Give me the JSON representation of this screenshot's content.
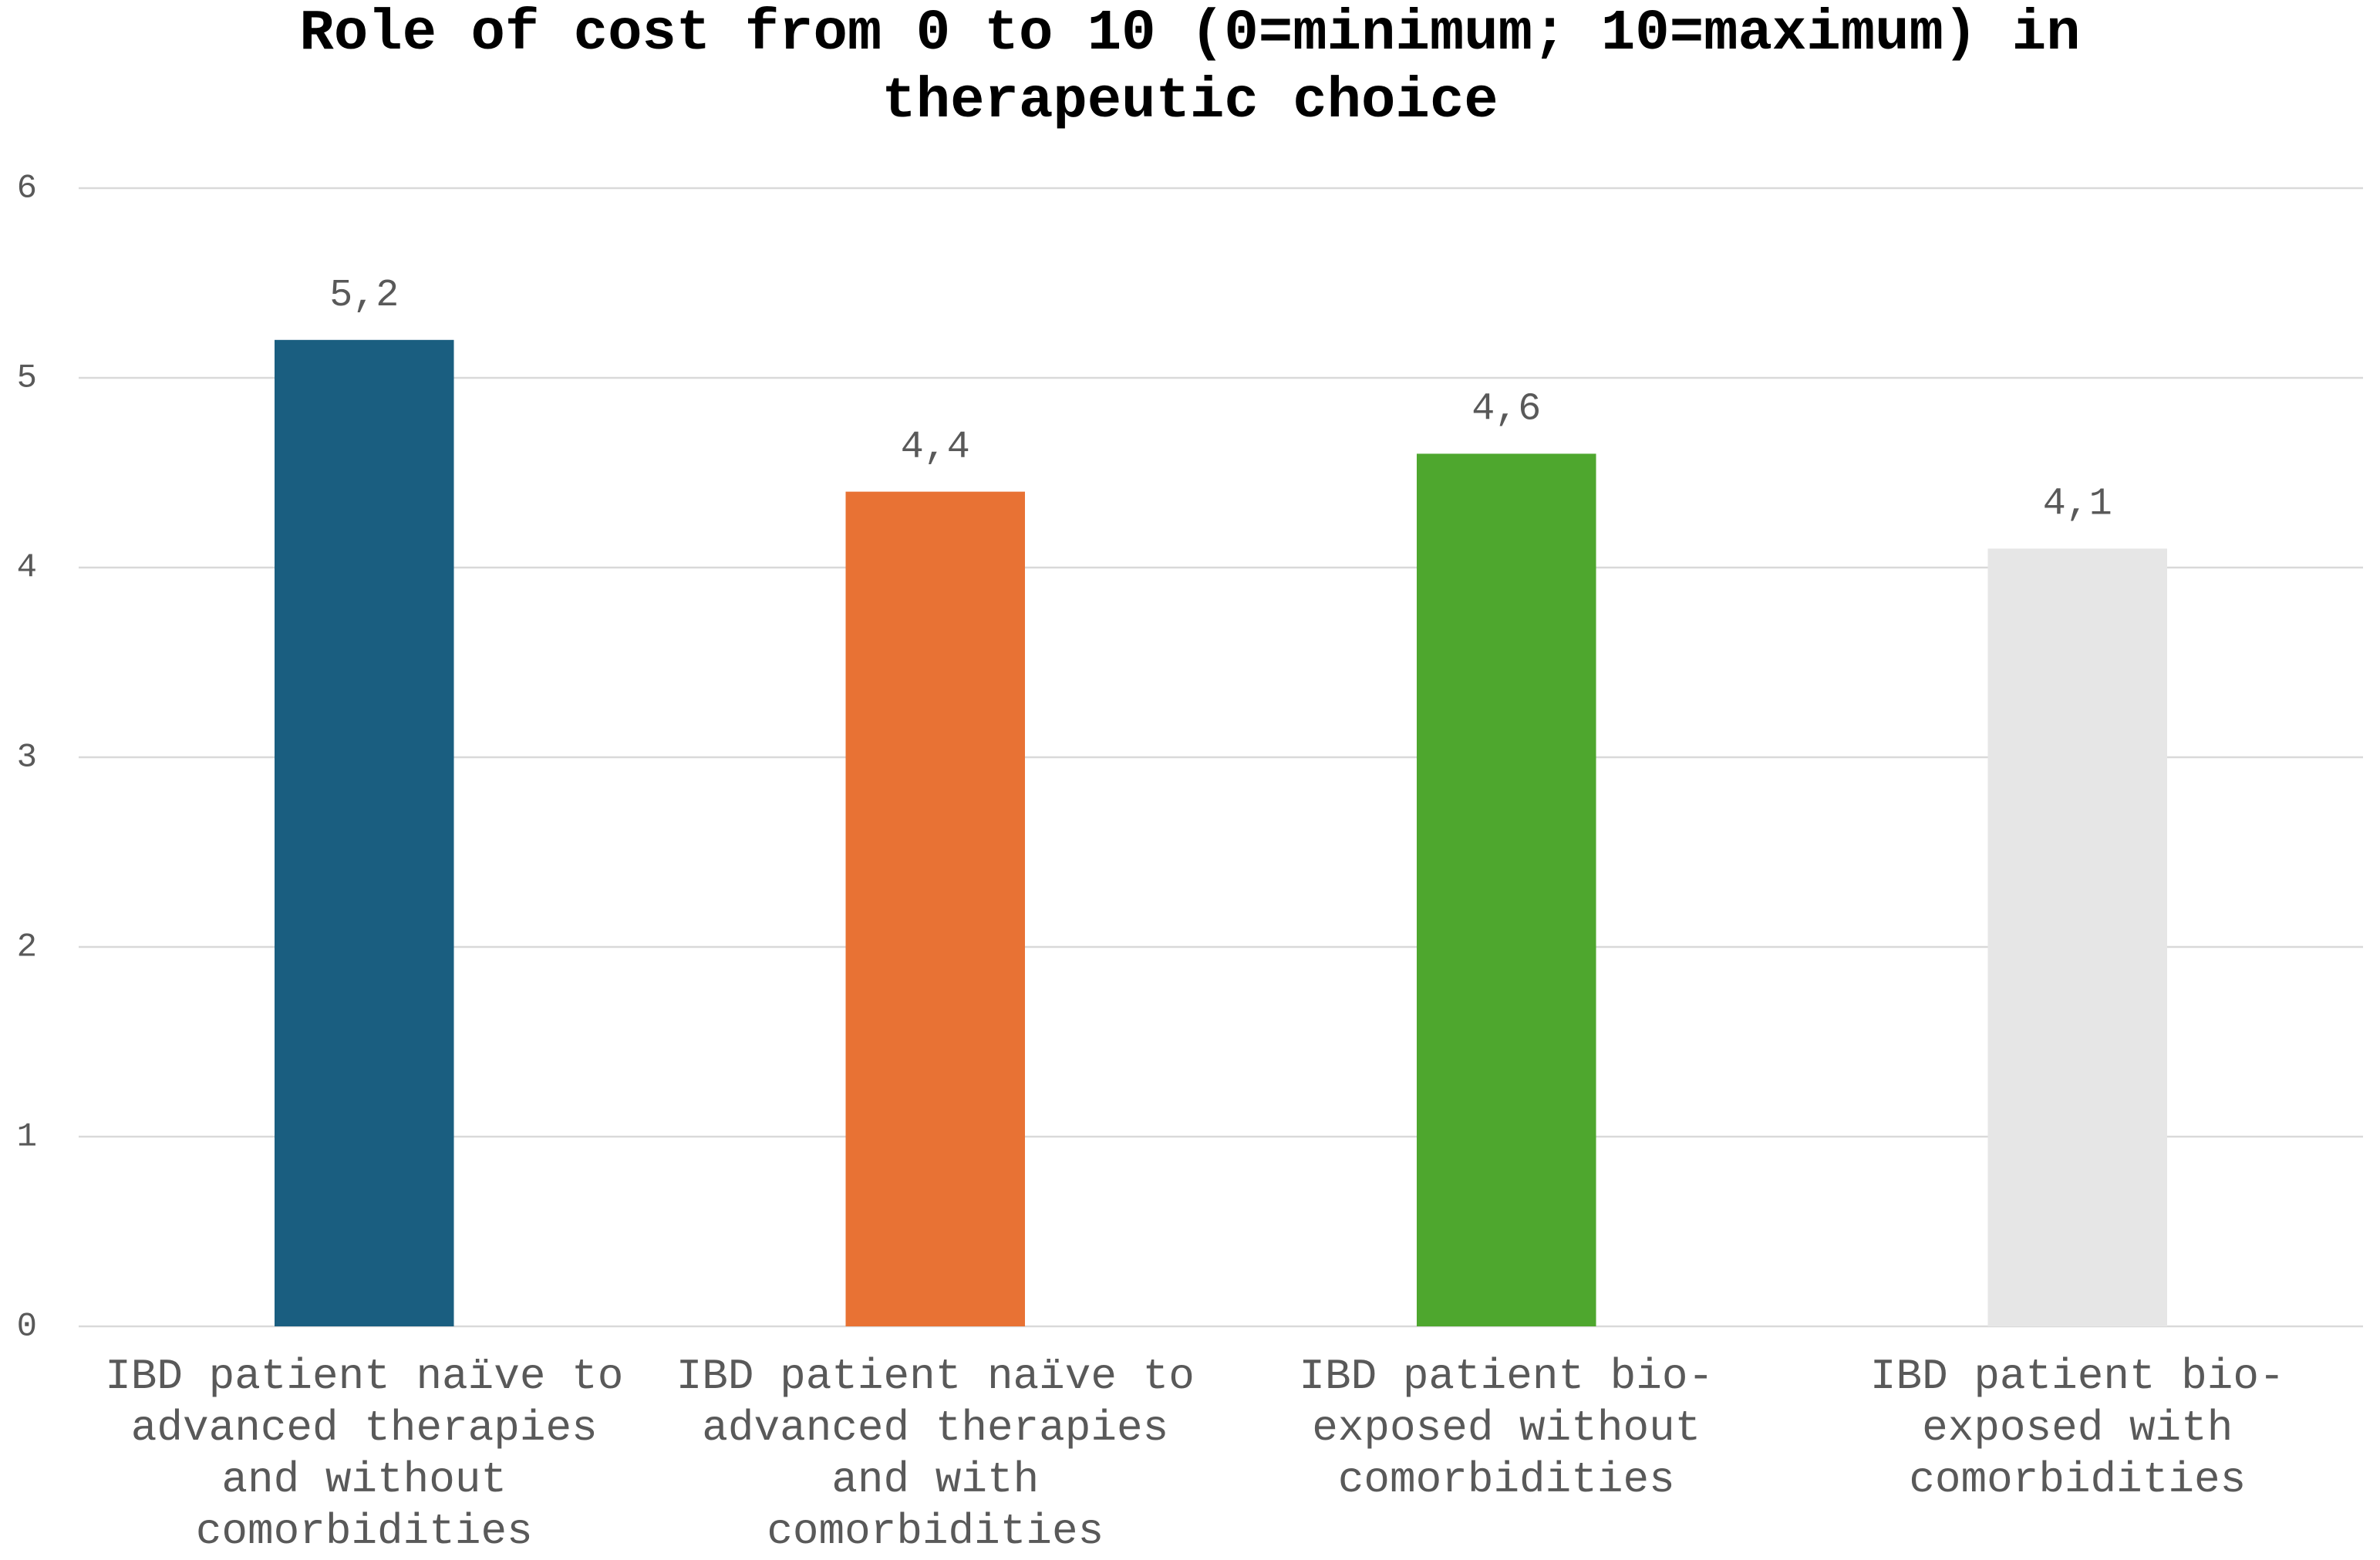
{
  "chart_data": {
    "type": "bar",
    "title": "Role of cost from 0 to 10 (0=minimum; 10=maximum) in therapeutic choice",
    "categories": [
      "IBD patient naïve to advanced therapies and without comorbidities",
      "IBD patient naïve to advanced therapies and with comorbidities",
      "IBD patient bio-exposed without comorbidities",
      "IBD patient bio-exposed with comorbidities"
    ],
    "values": [
      5.2,
      4.4,
      4.6,
      4.1
    ],
    "value_labels": [
      "5,2",
      "4,4",
      "4,6",
      "4,1"
    ],
    "colors": [
      "#1a5e80",
      "#e87234",
      "#4ea72e",
      "#e6e6e6"
    ],
    "ylim": [
      0,
      6
    ],
    "yticks": [
      0,
      1,
      2,
      3,
      4,
      5,
      6
    ],
    "grid": true
  }
}
